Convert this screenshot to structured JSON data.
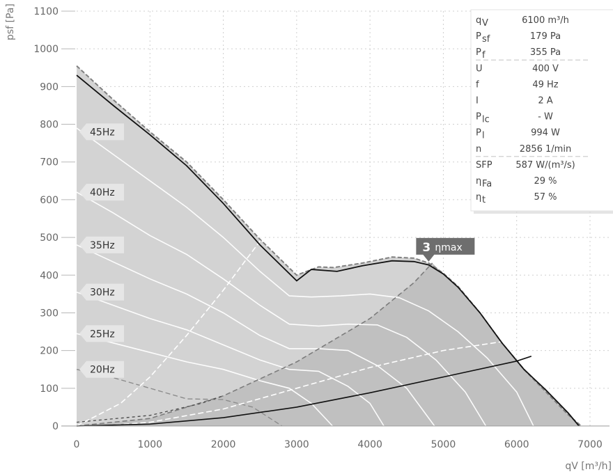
{
  "chart_data": {
    "type": "line",
    "xlabel": "qV [m³/h]",
    "ylabel": "psf [Pa]",
    "xlim": [
      0,
      7000
    ],
    "ylim": [
      0,
      1100
    ],
    "x_ticks": [
      0,
      1000,
      2000,
      3000,
      4000,
      5000,
      6000,
      7000
    ],
    "y_ticks": [
      0,
      100,
      200,
      300,
      400,
      500,
      600,
      700,
      800,
      900,
      1000,
      1100
    ],
    "grid": true,
    "colors": {
      "envelope_fill": "#d3d3d3",
      "envelope_edge": "#808080",
      "optimal_zone_fill": "#c0c0c0",
      "fan_curve": "#111111",
      "system_curve": "#111111",
      "speed_curves": "#ffffff",
      "hz_label_bg": "#e6e6e6",
      "marker_bg": "#6e6e6e"
    },
    "envelope": [
      [
        0,
        955
      ],
      [
        500,
        865
      ],
      [
        1000,
        780
      ],
      [
        1500,
        700
      ],
      [
        2000,
        600
      ],
      [
        2500,
        495
      ],
      [
        3000,
        400
      ],
      [
        3300,
        422
      ],
      [
        3500,
        420
      ],
      [
        3900,
        432
      ],
      [
        4300,
        448
      ],
      [
        4600,
        445
      ],
      [
        4800,
        432
      ],
      [
        5000,
        405
      ],
      [
        5200,
        370
      ],
      [
        5500,
        300
      ],
      [
        5800,
        220
      ],
      [
        6100,
        150
      ],
      [
        6400,
        90
      ],
      [
        6700,
        30
      ],
      [
        6880,
        0
      ]
    ],
    "fan_curve": [
      [
        0,
        930
      ],
      [
        500,
        850
      ],
      [
        1000,
        772
      ],
      [
        1500,
        690
      ],
      [
        2000,
        590
      ],
      [
        2500,
        480
      ],
      [
        3000,
        385
      ],
      [
        3200,
        415
      ],
      [
        3550,
        410
      ],
      [
        3900,
        425
      ],
      [
        4300,
        438
      ],
      [
        4600,
        436
      ],
      [
        4800,
        427
      ],
      [
        5000,
        403
      ],
      [
        5200,
        368
      ],
      [
        5500,
        300
      ],
      [
        5800,
        220
      ],
      [
        6100,
        150
      ],
      [
        6400,
        95
      ],
      [
        6700,
        35
      ],
      [
        6850,
        0
      ]
    ],
    "system_curve": [
      [
        0,
        0
      ],
      [
        1000,
        5
      ],
      [
        2000,
        22
      ],
      [
        3000,
        50
      ],
      [
        4000,
        88
      ],
      [
        5000,
        130
      ],
      [
        6000,
        172
      ],
      [
        6200,
        185
      ]
    ],
    "optimal_lower": [
      [
        300,
        0
      ],
      [
        1000,
        10
      ],
      [
        2000,
        45
      ],
      [
        3000,
        100
      ],
      [
        4000,
        155
      ],
      [
        5000,
        200
      ],
      [
        5950,
        228
      ]
    ],
    "optimal_upper": [
      [
        0,
        0
      ],
      [
        1000,
        20
      ],
      [
        2000,
        80
      ],
      [
        3000,
        170
      ],
      [
        4000,
        285
      ],
      [
        4600,
        380
      ],
      [
        4850,
        432
      ]
    ],
    "efficiency_curve": [
      [
        0,
        0
      ],
      [
        600,
        60
      ],
      [
        1000,
        130
      ],
      [
        1500,
        240
      ],
      [
        2000,
        360
      ],
      [
        2500,
        490
      ],
      [
        2600,
        540
      ]
    ],
    "hz_20_curve": [
      [
        0,
        150
      ],
      [
        500,
        128
      ],
      [
        1000,
        100
      ],
      [
        1500,
        72
      ],
      [
        2000,
        70
      ],
      [
        2400,
        50
      ],
      [
        2800,
        0
      ]
    ],
    "speed_curves": [
      {
        "name": "45Hz",
        "points": [
          [
            0,
            790
          ],
          [
            500,
            720
          ],
          [
            1000,
            650
          ],
          [
            1500,
            580
          ],
          [
            2000,
            500
          ],
          [
            2500,
            410
          ],
          [
            2900,
            345
          ],
          [
            3200,
            342
          ],
          [
            3600,
            345
          ],
          [
            4000,
            350
          ],
          [
            4400,
            340
          ],
          [
            4800,
            305
          ],
          [
            5200,
            250
          ],
          [
            5600,
            180
          ],
          [
            6000,
            90
          ],
          [
            6230,
            0
          ]
        ]
      },
      {
        "name": "40Hz",
        "points": [
          [
            0,
            620
          ],
          [
            500,
            565
          ],
          [
            1000,
            505
          ],
          [
            1500,
            455
          ],
          [
            2000,
            390
          ],
          [
            2500,
            320
          ],
          [
            2900,
            270
          ],
          [
            3300,
            265
          ],
          [
            3700,
            270
          ],
          [
            4100,
            268
          ],
          [
            4500,
            235
          ],
          [
            4900,
            175
          ],
          [
            5300,
            90
          ],
          [
            5580,
            0
          ]
        ]
      },
      {
        "name": "35Hz",
        "points": [
          [
            0,
            480
          ],
          [
            500,
            435
          ],
          [
            1000,
            390
          ],
          [
            1500,
            350
          ],
          [
            2000,
            300
          ],
          [
            2500,
            240
          ],
          [
            2900,
            205
          ],
          [
            3300,
            205
          ],
          [
            3700,
            200
          ],
          [
            4100,
            160
          ],
          [
            4500,
            100
          ],
          [
            4880,
            0
          ]
        ]
      },
      {
        "name": "30Hz",
        "points": [
          [
            0,
            355
          ],
          [
            500,
            320
          ],
          [
            1000,
            285
          ],
          [
            1500,
            255
          ],
          [
            2000,
            215
          ],
          [
            2500,
            175
          ],
          [
            2900,
            150
          ],
          [
            3300,
            145
          ],
          [
            3700,
            105
          ],
          [
            4000,
            60
          ],
          [
            4190,
            0
          ]
        ]
      },
      {
        "name": "25Hz",
        "points": [
          [
            0,
            245
          ],
          [
            500,
            220
          ],
          [
            1000,
            195
          ],
          [
            1500,
            170
          ],
          [
            2000,
            150
          ],
          [
            2500,
            120
          ],
          [
            2900,
            100
          ],
          [
            3200,
            60
          ],
          [
            3490,
            0
          ]
        ]
      }
    ],
    "dashed_low": [
      [
        0,
        10
      ],
      [
        1000,
        28
      ],
      [
        1700,
        60
      ],
      [
        2000,
        80
      ]
    ],
    "hz_labels": [
      {
        "label": "45Hz",
        "y": 780
      },
      {
        "label": "40Hz",
        "y": 620
      },
      {
        "label": "35Hz",
        "y": 480
      },
      {
        "label": "30Hz",
        "y": 355
      },
      {
        "label": "25Hz",
        "y": 245
      },
      {
        "label": "20Hz",
        "y": 150
      }
    ],
    "marker": {
      "number": "3",
      "label": "ηmax",
      "x": 4800,
      "y": 432
    },
    "info_table": {
      "groups": [
        [
          {
            "sym": "q",
            "sub": "V",
            "value": "6100 m³/h"
          },
          {
            "sym": "P",
            "sub": "sf",
            "value": "179 Pa"
          },
          {
            "sym": "P",
            "sub": "f",
            "value": "355 Pa"
          }
        ],
        [
          {
            "sym": "U",
            "sub": "",
            "value": "400 V"
          },
          {
            "sym": "f",
            "sub": "",
            "value": "49 Hz"
          },
          {
            "sym": "I",
            "sub": "",
            "value": "2 A"
          },
          {
            "sym": "P",
            "sub": "lc",
            "value": "- W"
          },
          {
            "sym": "P",
            "sub": "l",
            "value": "994 W"
          },
          {
            "sym": "n",
            "sub": "",
            "value": "2856 1/min"
          }
        ],
        [
          {
            "sym": "SFP",
            "sub": "",
            "value": "587 W/(m³/s)"
          },
          {
            "sym": "η",
            "sub": "Fa",
            "value": "29 %"
          },
          {
            "sym": "η",
            "sub": "t",
            "value": "57 %"
          }
        ]
      ]
    }
  }
}
